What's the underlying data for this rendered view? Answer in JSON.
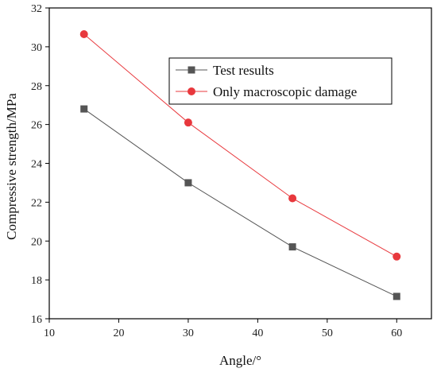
{
  "chart_data": {
    "type": "line",
    "title": "",
    "xlabel": "Angle/°",
    "ylabel": "Compressive strength/MPa",
    "xlim": [
      10,
      65
    ],
    "ylim": [
      16,
      32
    ],
    "xticks": [
      10,
      20,
      30,
      40,
      50,
      60
    ],
    "yticks": [
      16,
      18,
      20,
      22,
      24,
      26,
      28,
      30,
      32
    ],
    "grid": false,
    "legend_position": "top-right",
    "series": [
      {
        "name": "Test results",
        "marker": "square",
        "color": "#555555",
        "x": [
          15,
          30,
          45,
          60
        ],
        "y": [
          26.8,
          23.0,
          19.7,
          17.15
        ]
      },
      {
        "name": "Only macroscopic damage",
        "marker": "circle",
        "color": "#e8383d",
        "x": [
          15,
          30,
          45,
          60
        ],
        "y": [
          30.65,
          26.1,
          22.2,
          19.2
        ]
      }
    ]
  }
}
